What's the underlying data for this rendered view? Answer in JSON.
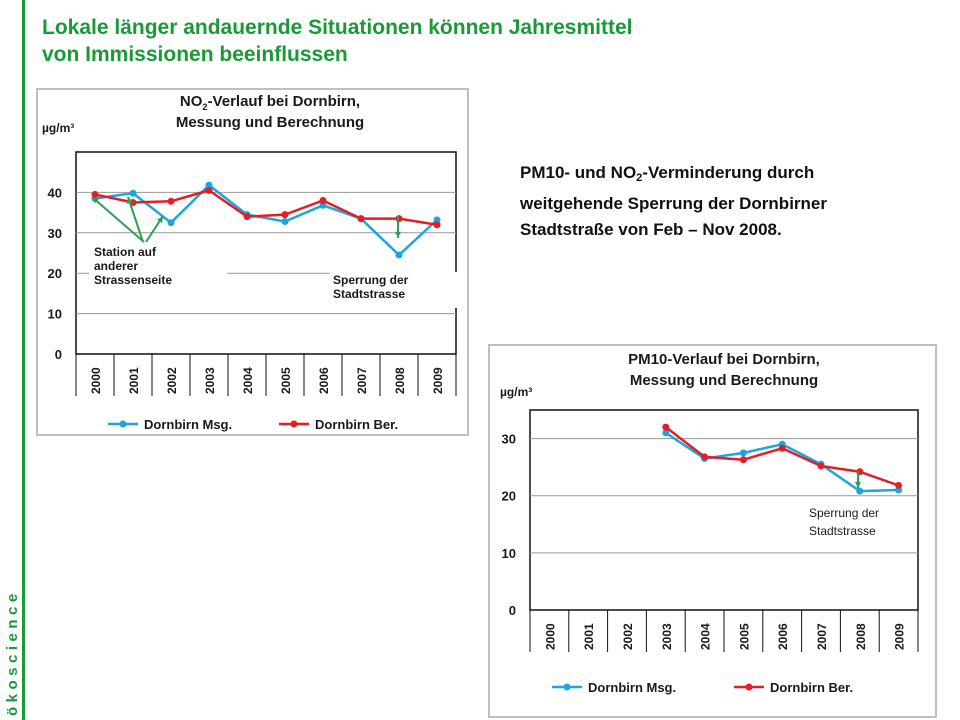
{
  "slide": {
    "title_lines": [
      "Lokale länger andauernde Situationen können Jahresmittel",
      "von Immissionen beeinflussen"
    ],
    "side_text": {
      "part1": "PM10- und NO",
      "sub": "2",
      "part2": "-Verminderung durch weitgehende Sperrung der Dornbirner Stadtstraße von Feb – Nov 2008."
    },
    "brand": "ökoscience",
    "colors": {
      "brand_green": "#1a9a37",
      "series_msg": "#1aa7e0",
      "series_ber": "#e41e26"
    }
  },
  "chart_data": [
    {
      "type": "line",
      "title_lines": [
        "NO2-Verlauf bei Dornbirn,",
        "Messung und Berechnung"
      ],
      "unit": "µg/m³",
      "categories": [
        "2000",
        "2001",
        "2002",
        "2003",
        "2004",
        "2005",
        "2006",
        "2007",
        "2008",
        "2009"
      ],
      "ylim": [
        0,
        50
      ],
      "yticks": [
        0,
        10,
        20,
        30,
        40
      ],
      "grid": true,
      "legend": "bottom",
      "series": [
        {
          "name": "Dornbirn Msg.",
          "color": "#1aa7e0",
          "values": [
            38.5,
            39.8,
            32.5,
            41.8,
            34.5,
            32.8,
            36.8,
            33.5,
            24.5,
            33.2
          ]
        },
        {
          "name": "Dornbirn Ber.",
          "color": "#e41e26",
          "values": [
            39.5,
            37.5,
            37.8,
            40.5,
            34.0,
            34.5,
            38.0,
            33.5,
            33.5,
            32.0
          ]
        }
      ],
      "annotations": [
        {
          "text_lines": [
            "Station auf",
            "anderer",
            "Strassenseite"
          ],
          "points_to": [
            "2000",
            "2001",
            "2002"
          ]
        },
        {
          "text_lines": [
            "Sperrung der",
            "Stadtstrasse"
          ],
          "points_to": [
            "2008"
          ]
        }
      ]
    },
    {
      "type": "line",
      "title_lines": [
        "PM10-Verlauf bei Dornbirn,",
        "Messung und Berechnung"
      ],
      "unit": "µg/m³",
      "categories": [
        "2000",
        "2001",
        "2002",
        "2003",
        "2004",
        "2005",
        "2006",
        "2007",
        "2008",
        "2009"
      ],
      "ylim": [
        0,
        35
      ],
      "yticks": [
        0,
        10,
        20,
        30
      ],
      "grid": true,
      "legend": "bottom",
      "series": [
        {
          "name": "Dornbirn Msg.",
          "color": "#1aa7e0",
          "values": [
            null,
            null,
            null,
            31.0,
            26.5,
            27.5,
            29.0,
            25.5,
            20.8,
            21.0
          ]
        },
        {
          "name": "Dornbirn Ber.",
          "color": "#e41e26",
          "values": [
            null,
            null,
            null,
            32.0,
            26.8,
            26.3,
            28.3,
            25.2,
            24.2,
            21.8
          ]
        }
      ],
      "annotations": [
        {
          "text_lines": [
            "Sperrung der",
            "Stadtstrasse"
          ],
          "points_to": [
            "2008"
          ]
        }
      ]
    }
  ]
}
